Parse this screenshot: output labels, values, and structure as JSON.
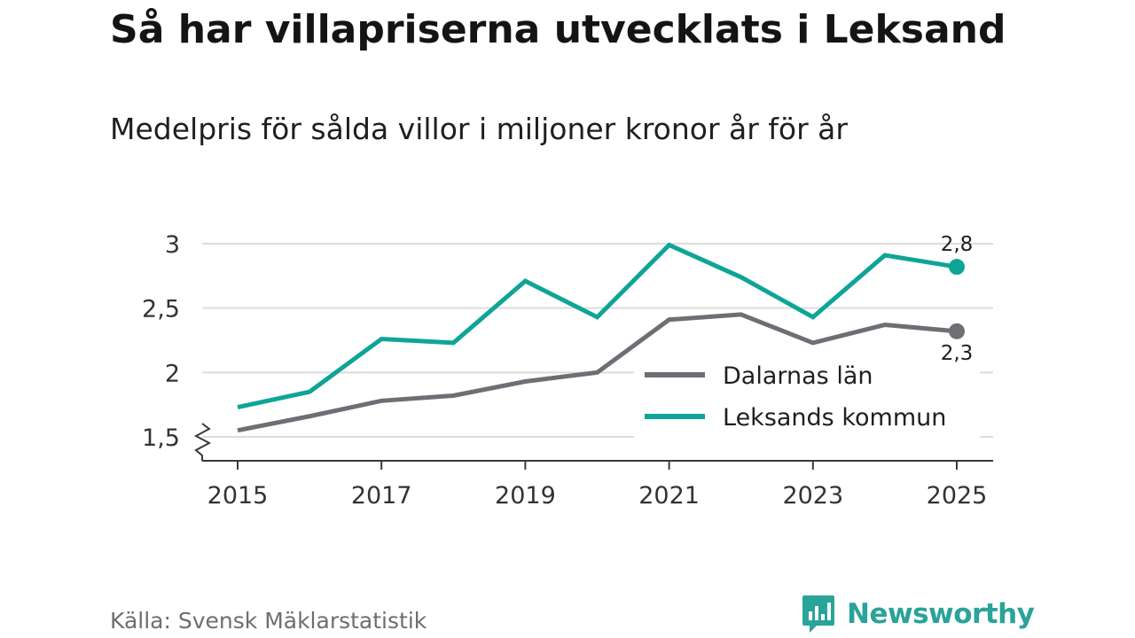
{
  "header": {
    "title": "Så har villapriserna utvecklats i Leksand",
    "subtitle": "Medelpris för sålda villor i miljoner kronor år för år"
  },
  "footer": {
    "source": "Källa: Svensk Mäklarstatistik",
    "brand": "Newsworthy",
    "brand_color": "#2aa39a"
  },
  "chart_data": {
    "type": "line",
    "title": "Så har villapriserna utvecklats i Leksand",
    "subtitle": "Medelpris för sålda villor i miljoner kronor år för år",
    "xlabel": "",
    "ylabel": "",
    "x": [
      2015,
      2016,
      2017,
      2018,
      2019,
      2020,
      2021,
      2022,
      2023,
      2024,
      2025
    ],
    "x_ticks": [
      "2015",
      "2017",
      "2019",
      "2021",
      "2023",
      "2025"
    ],
    "y_ticks": [
      "1,5",
      "2",
      "2,5",
      "3"
    ],
    "y_tick_values": [
      1.5,
      2,
      2.5,
      3
    ],
    "ylim": [
      1.32,
      3.05
    ],
    "axis_break": true,
    "grid": true,
    "legend_position": "inside-right",
    "series": [
      {
        "name": "Dalarnas län",
        "color": "#6e6e75",
        "values": [
          1.55,
          1.66,
          1.78,
          1.82,
          1.93,
          2.0,
          2.41,
          2.45,
          2.23,
          2.37,
          2.32
        ],
        "end_label": "2,3"
      },
      {
        "name": "Leksands kommun",
        "color": "#0ea598",
        "values": [
          1.73,
          1.85,
          2.26,
          2.23,
          2.71,
          2.43,
          2.99,
          2.74,
          2.43,
          2.91,
          2.82
        ],
        "end_label": "2,8"
      }
    ]
  }
}
